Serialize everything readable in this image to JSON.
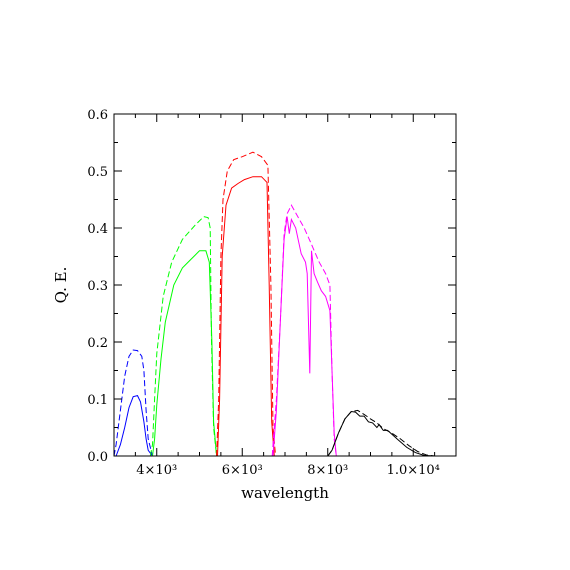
{
  "chart_data": {
    "type": "line",
    "xlabel": "wavelength",
    "ylabel": "Q. E.",
    "xlim": [
      3000,
      11000
    ],
    "ylim": [
      0,
      0.6
    ],
    "x_ticks": [
      {
        "value": 4000,
        "label": "4×10³"
      },
      {
        "value": 6000,
        "label": "6×10³"
      },
      {
        "value": 8000,
        "label": "8×10³"
      },
      {
        "value": 10000,
        "label": "1.0×10⁴"
      }
    ],
    "y_ticks": [
      {
        "value": 0.0,
        "label": "0.0"
      },
      {
        "value": 0.1,
        "label": "0.1"
      },
      {
        "value": 0.2,
        "label": "0.2"
      },
      {
        "value": 0.3,
        "label": "0.3"
      },
      {
        "value": 0.4,
        "label": "0.4"
      },
      {
        "value": 0.5,
        "label": "0.5"
      },
      {
        "value": 0.6,
        "label": "0.6"
      }
    ],
    "grid": false,
    "series": [
      {
        "color": "#0000ff",
        "dash": true,
        "points": [
          [
            3000,
            0.0
          ],
          [
            3050,
            0.02
          ],
          [
            3150,
            0.08
          ],
          [
            3250,
            0.14
          ],
          [
            3350,
            0.175
          ],
          [
            3450,
            0.186
          ],
          [
            3550,
            0.185
          ],
          [
            3650,
            0.175
          ],
          [
            3700,
            0.15
          ],
          [
            3750,
            0.08
          ],
          [
            3800,
            0.03
          ],
          [
            3900,
            0.0
          ]
        ]
      },
      {
        "color": "#0000ff",
        "dash": false,
        "points": [
          [
            3050,
            0.0
          ],
          [
            3150,
            0.02
          ],
          [
            3250,
            0.05
          ],
          [
            3350,
            0.085
          ],
          [
            3450,
            0.104
          ],
          [
            3550,
            0.106
          ],
          [
            3620,
            0.095
          ],
          [
            3700,
            0.06
          ],
          [
            3750,
            0.03
          ],
          [
            3800,
            0.01
          ],
          [
            3900,
            0.0
          ]
        ]
      },
      {
        "color": "#00ff00",
        "dash": true,
        "points": [
          [
            3850,
            0.0
          ],
          [
            3900,
            0.02
          ],
          [
            3950,
            0.1
          ],
          [
            4000,
            0.18
          ],
          [
            4150,
            0.28
          ],
          [
            4350,
            0.34
          ],
          [
            4600,
            0.38
          ],
          [
            4900,
            0.405
          ],
          [
            5100,
            0.42
          ],
          [
            5200,
            0.418
          ],
          [
            5250,
            0.4
          ],
          [
            5280,
            0.2
          ],
          [
            5330,
            0.05
          ],
          [
            5400,
            0.0
          ]
        ]
      },
      {
        "color": "#00ff00",
        "dash": false,
        "points": [
          [
            3900,
            0.0
          ],
          [
            3950,
            0.03
          ],
          [
            4000,
            0.09
          ],
          [
            4100,
            0.17
          ],
          [
            4200,
            0.235
          ],
          [
            4400,
            0.3
          ],
          [
            4600,
            0.33
          ],
          [
            4800,
            0.345
          ],
          [
            5000,
            0.36
          ],
          [
            5150,
            0.36
          ],
          [
            5230,
            0.34
          ],
          [
            5290,
            0.2
          ],
          [
            5330,
            0.06
          ],
          [
            5400,
            0.0
          ]
        ]
      },
      {
        "color": "#ff0000",
        "dash": true,
        "points": [
          [
            5400,
            0.0
          ],
          [
            5450,
            0.1
          ],
          [
            5500,
            0.35
          ],
          [
            5550,
            0.45
          ],
          [
            5650,
            0.5
          ],
          [
            5800,
            0.52
          ],
          [
            6000,
            0.525
          ],
          [
            6250,
            0.533
          ],
          [
            6450,
            0.525
          ],
          [
            6600,
            0.51
          ],
          [
            6670,
            0.3
          ],
          [
            6720,
            0.05
          ],
          [
            6780,
            0.0
          ]
        ]
      },
      {
        "color": "#ff0000",
        "dash": false,
        "points": [
          [
            5420,
            0.0
          ],
          [
            5470,
            0.1
          ],
          [
            5530,
            0.35
          ],
          [
            5620,
            0.44
          ],
          [
            5750,
            0.47
          ],
          [
            5900,
            0.478
          ],
          [
            6050,
            0.485
          ],
          [
            6250,
            0.49
          ],
          [
            6450,
            0.49
          ],
          [
            6580,
            0.48
          ],
          [
            6630,
            0.3
          ],
          [
            6690,
            0.06
          ],
          [
            6750,
            0.0
          ]
        ]
      },
      {
        "color": "#ff00ff",
        "dash": true,
        "points": [
          [
            6700,
            0.0
          ],
          [
            6800,
            0.1
          ],
          [
            6900,
            0.25
          ],
          [
            6980,
            0.39
          ],
          [
            7050,
            0.425
          ],
          [
            7150,
            0.44
          ],
          [
            7300,
            0.42
          ],
          [
            7450,
            0.4
          ],
          [
            7600,
            0.375
          ],
          [
            7800,
            0.34
          ],
          [
            7950,
            0.32
          ],
          [
            8050,
            0.3
          ],
          [
            8100,
            0.15
          ],
          [
            8150,
            0.03
          ],
          [
            8200,
            0.0
          ]
        ]
      },
      {
        "color": "#ff00ff",
        "dash": false,
        "points": [
          [
            6720,
            0.0
          ],
          [
            6800,
            0.08
          ],
          [
            6900,
            0.25
          ],
          [
            6980,
            0.38
          ],
          [
            7050,
            0.42
          ],
          [
            7100,
            0.39
          ],
          [
            7150,
            0.415
          ],
          [
            7250,
            0.4
          ],
          [
            7380,
            0.355
          ],
          [
            7480,
            0.34
          ],
          [
            7520,
            0.32
          ],
          [
            7580,
            0.145
          ],
          [
            7620,
            0.36
          ],
          [
            7680,
            0.32
          ],
          [
            7760,
            0.305
          ],
          [
            7850,
            0.29
          ],
          [
            7950,
            0.28
          ],
          [
            8050,
            0.255
          ],
          [
            8100,
            0.15
          ],
          [
            8150,
            0.04
          ],
          [
            8200,
            0.0
          ]
        ]
      },
      {
        "color": "#000000",
        "dash": true,
        "points": [
          [
            8000,
            0.0
          ],
          [
            8100,
            0.01
          ],
          [
            8250,
            0.04
          ],
          [
            8400,
            0.065
          ],
          [
            8550,
            0.078
          ],
          [
            8700,
            0.08
          ],
          [
            8850,
            0.073
          ],
          [
            9000,
            0.065
          ],
          [
            9150,
            0.058
          ],
          [
            9300,
            0.048
          ],
          [
            9500,
            0.04
          ],
          [
            9700,
            0.03
          ],
          [
            9900,
            0.018
          ],
          [
            10100,
            0.008
          ],
          [
            10300,
            0.002
          ],
          [
            10500,
            0.0
          ]
        ]
      },
      {
        "color": "#000000",
        "dash": false,
        "points": [
          [
            8000,
            0.0
          ],
          [
            8100,
            0.01
          ],
          [
            8250,
            0.04
          ],
          [
            8400,
            0.065
          ],
          [
            8550,
            0.078
          ],
          [
            8650,
            0.077
          ],
          [
            8750,
            0.07
          ],
          [
            8850,
            0.07
          ],
          [
            8950,
            0.06
          ],
          [
            9050,
            0.058
          ],
          [
            9150,
            0.05
          ],
          [
            9200,
            0.055
          ],
          [
            9300,
            0.045
          ],
          [
            9400,
            0.045
          ],
          [
            9500,
            0.038
          ],
          [
            9650,
            0.028
          ],
          [
            9850,
            0.015
          ],
          [
            10050,
            0.006
          ],
          [
            10250,
            0.001
          ],
          [
            10500,
            0.0
          ]
        ]
      }
    ]
  }
}
